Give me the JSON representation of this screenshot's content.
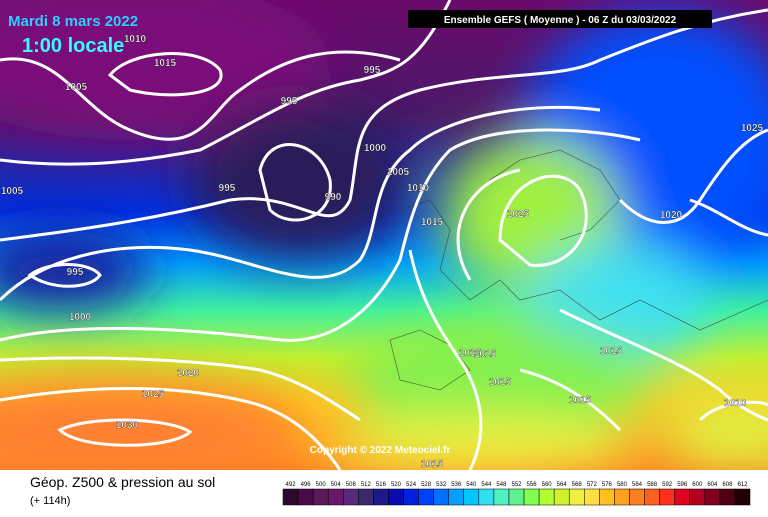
{
  "header": {
    "title": "Mardi 8 mars 2022",
    "local_time": "1:00 locale",
    "run_info": "Ensemble GEFS  ( Moyenne )  -  06 Z du 03/03/2022"
  },
  "map": {
    "isobar_labels": [
      1010,
      1015,
      995,
      1005,
      995,
      1025,
      1000,
      1005,
      1010,
      995,
      1005,
      990,
      1025,
      1020,
      1015,
      995,
      1000,
      1015,
      1015,
      1015,
      1020,
      1015,
      1025,
      1015,
      1010,
      1030,
      1015
    ],
    "copyright": "Copyright © 2022 Meteociel.fr"
  },
  "footer": {
    "title": "Géop. Z500 & pression au sol",
    "lead": "(+ 114h)",
    "scale_labels": [
      492,
      496,
      500,
      504,
      508,
      512,
      516,
      520,
      524,
      528,
      532,
      536,
      540,
      544,
      548,
      552,
      556,
      560,
      564,
      568,
      572,
      576,
      580,
      584,
      588,
      592,
      596,
      600,
      604,
      608,
      612
    ],
    "scale_colors": [
      "#2d0a2d",
      "#4a0a4a",
      "#5a1a5a",
      "#6a1a6a",
      "#5a2a7a",
      "#3a2a6a",
      "#1a1a8a",
      "#0a0ab0",
      "#0020e0",
      "#0040ff",
      "#0070ff",
      "#00a0ff",
      "#00c8ff",
      "#30e0f0",
      "#50f0c0",
      "#60f090",
      "#80ff50",
      "#b0ff30",
      "#d0f030",
      "#f0f040",
      "#ffe040",
      "#ffc020",
      "#ffa020",
      "#ff8020",
      "#ff6020",
      "#ff3020",
      "#e00020",
      "#b00020",
      "#800020",
      "#500010",
      "#200000"
    ]
  }
}
